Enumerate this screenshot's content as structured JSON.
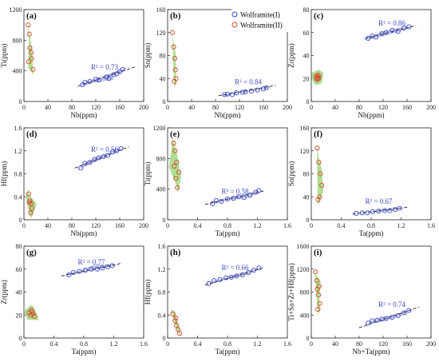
{
  "legend": {
    "series1_name": "Wolframite(I)",
    "series2_name": "Wolframite(II)",
    "series1_color": "#3f49c4",
    "series2_color": "#d14b2a",
    "series1_fill": "#b8bfe6",
    "series2_fill": "#a9d98a",
    "placement": "top-right of panel (b)"
  },
  "chart_data": [
    {
      "type": "scatter",
      "panel": "a",
      "panel_label": "(a)",
      "xlabel": "Nb(ppm)",
      "ylabel": "Ti(ppm)",
      "xlim": [
        0,
        200
      ],
      "ylim": [
        0,
        1200
      ],
      "xticks": [
        0,
        40,
        80,
        120,
        160,
        200
      ],
      "yticks": [
        0,
        400,
        800,
        1200
      ],
      "r2_label": "R² = 0.73",
      "r2_pos": [
        112,
        420
      ],
      "trend": {
        "x": [
          90,
          185
        ],
        "y": [
          200,
          450
        ]
      },
      "series": [
        {
          "name": "Wolframite(I)",
          "x": [
            98,
            102,
            110,
            120,
            125,
            138,
            142,
            150,
            155,
            160,
            165
          ],
          "y": [
            220,
            250,
            260,
            290,
            280,
            320,
            300,
            350,
            360,
            390,
            420
          ]
        },
        {
          "name": "Wolframite(II)",
          "x": [
            7,
            9,
            10,
            12,
            13,
            15,
            8
          ],
          "y": [
            1000,
            880,
            700,
            640,
            560,
            420,
            520
          ]
        }
      ]
    },
    {
      "type": "scatter",
      "panel": "b",
      "panel_label": "(b)",
      "xlabel": "Nb(ppm)",
      "ylabel": "Sn(ppm)",
      "xlim": [
        0,
        200
      ],
      "ylim": [
        0,
        160
      ],
      "xticks": [
        0,
        40,
        80,
        120,
        160,
        200
      ],
      "yticks": [
        0,
        40,
        80,
        120,
        160
      ],
      "r2_label": "R² = 0.84",
      "r2_pos": [
        112,
        30
      ],
      "trend": {
        "x": [
          85,
          180
        ],
        "y": [
          10,
          28
        ]
      },
      "series": [
        {
          "name": "Wolframite(I)",
          "x": [
            95,
            100,
            108,
            115,
            125,
            130,
            140,
            150,
            160,
            165
          ],
          "y": [
            12,
            13,
            12,
            15,
            16,
            17,
            18,
            20,
            22,
            24
          ]
        },
        {
          "name": "Wolframite(II)",
          "x": [
            8,
            10,
            12,
            13,
            14,
            11
          ],
          "y": [
            120,
            95,
            75,
            55,
            40,
            35
          ]
        }
      ]
    },
    {
      "type": "scatter",
      "panel": "c",
      "panel_label": "(c)",
      "xlabel": "Nb(ppm)",
      "ylabel": "Zr(ppm)",
      "xlim": [
        0,
        200
      ],
      "ylim": [
        0,
        80
      ],
      "xticks": [
        0,
        40,
        80,
        120,
        160,
        200
      ],
      "yticks": [
        0,
        20,
        40,
        60,
        80
      ],
      "r2_label": "R² = 0.86",
      "r2_pos": [
        112,
        66
      ],
      "trend": {
        "x": [
          90,
          175
        ],
        "y": [
          55,
          66
        ]
      },
      "series": [
        {
          "name": "Wolframite(I)",
          "x": [
            95,
            102,
            108,
            118,
            125,
            135,
            145,
            155,
            163
          ],
          "y": [
            55,
            57,
            56,
            59,
            60,
            62,
            61,
            64,
            65
          ]
        },
        {
          "name": "Wolframite(II)",
          "x": [
            8,
            9,
            10,
            11,
            12,
            13,
            10
          ],
          "y": [
            22,
            20,
            21,
            23,
            20,
            22,
            19
          ]
        }
      ]
    },
    {
      "type": "scatter",
      "panel": "d",
      "panel_label": "(d)",
      "xlabel": "Nb(ppm)",
      "ylabel": "Hf(ppm)",
      "xlim": [
        0,
        200
      ],
      "ylim": [
        0,
        1.6
      ],
      "xticks": [
        0,
        40,
        80,
        120,
        160,
        200
      ],
      "yticks": [
        0,
        0.4,
        0.8,
        1.2,
        1.6
      ],
      "r2_label": "R² = 0.56",
      "r2_pos": [
        112,
        1.18
      ],
      "trend": {
        "x": [
          85,
          175
        ],
        "y": [
          0.9,
          1.27
        ]
      },
      "series": [
        {
          "name": "Wolframite(I)",
          "x": [
            95,
            102,
            110,
            118,
            125,
            133,
            140,
            148,
            155,
            162
          ],
          "y": [
            0.9,
            0.98,
            1.0,
            1.05,
            1.08,
            1.1,
            1.12,
            1.18,
            1.2,
            1.24
          ]
        },
        {
          "name": "Wolframite(II)",
          "x": [
            8,
            10,
            12,
            13,
            11,
            9
          ],
          "y": [
            0.45,
            0.33,
            0.28,
            0.2,
            0.12,
            0.3
          ]
        }
      ]
    },
    {
      "type": "scatter",
      "panel": "e",
      "panel_label": "(e)",
      "xlabel": "Ta(ppm)",
      "ylabel": "Ti(ppm)",
      "xlim": [
        0,
        1.6
      ],
      "ylim": [
        0,
        1200
      ],
      "xticks": [
        0,
        0.4,
        0.8,
        1.2,
        1.6
      ],
      "yticks": [
        0,
        400,
        800,
        1200
      ],
      "r2_label": "R² = 0.58",
      "r2_pos": [
        0.72,
        340
      ],
      "trend": {
        "x": [
          0.5,
          1.3
        ],
        "y": [
          200,
          380
        ]
      },
      "series": [
        {
          "name": "Wolframite(I)",
          "x": [
            0.6,
            0.65,
            0.72,
            0.8,
            0.88,
            0.95,
            1.02,
            1.1,
            1.18,
            1.22
          ],
          "y": [
            210,
            250,
            240,
            270,
            280,
            300,
            290,
            320,
            360,
            380
          ]
        },
        {
          "name": "Wolframite(II)",
          "x": [
            0.08,
            0.1,
            0.12,
            0.15,
            0.11,
            0.13,
            0.09
          ],
          "y": [
            1000,
            900,
            750,
            620,
            540,
            420,
            700
          ]
        }
      ]
    },
    {
      "type": "scatter",
      "panel": "f",
      "panel_label": "(f)",
      "xlabel": "Ta(ppm)",
      "ylabel": "Sn(ppm)",
      "xlim": [
        0,
        1.6
      ],
      "ylim": [
        0,
        160
      ],
      "xticks": [
        0,
        0.4,
        0.8,
        1.2,
        1.6
      ],
      "yticks": [
        0,
        40,
        80,
        120,
        160
      ],
      "r2_label": "R² = 0.67",
      "r2_pos": [
        0.72,
        28
      ],
      "trend": {
        "x": [
          0.55,
          1.3
        ],
        "y": [
          10,
          22
        ]
      },
      "series": [
        {
          "name": "Wolframite(I)",
          "x": [
            0.6,
            0.68,
            0.75,
            0.82,
            0.9,
            0.98,
            1.05,
            1.12,
            1.18
          ],
          "y": [
            11,
            12,
            12,
            14,
            15,
            16,
            16,
            18,
            20
          ]
        },
        {
          "name": "Wolframite(II)",
          "x": [
            0.08,
            0.1,
            0.12,
            0.14,
            0.11,
            0.09
          ],
          "y": [
            125,
            100,
            80,
            60,
            40,
            35
          ]
        }
      ]
    },
    {
      "type": "scatter",
      "panel": "g",
      "panel_label": "(g)",
      "xlabel": "Ta(ppm)",
      "ylabel": "Zr(ppm)",
      "xlim": [
        0,
        1.6
      ],
      "ylim": [
        0,
        80
      ],
      "xticks": [
        0,
        0.4,
        0.8,
        1.2,
        1.6
      ],
      "yticks": [
        0,
        20,
        40,
        60,
        80
      ],
      "r2_label": "R² = 0.77",
      "r2_pos": [
        0.72,
        64
      ],
      "trend": {
        "x": [
          0.5,
          1.3
        ],
        "y": [
          54,
          65
        ]
      },
      "series": [
        {
          "name": "Wolframite(I)",
          "x": [
            0.6,
            0.66,
            0.74,
            0.82,
            0.9,
            0.98,
            1.05,
            1.12,
            1.18
          ],
          "y": [
            55,
            57,
            58,
            59,
            60,
            60,
            61,
            62,
            63
          ]
        },
        {
          "name": "Wolframite(II)",
          "x": [
            0.07,
            0.09,
            0.1,
            0.12,
            0.14,
            0.11
          ],
          "y": [
            22,
            20,
            24,
            21,
            19,
            23
          ]
        }
      ]
    },
    {
      "type": "scatter",
      "panel": "h",
      "panel_label": "(h)",
      "xlabel": "Ta(ppm)",
      "ylabel": "Hf(ppm)",
      "xlim": [
        0,
        1.6
      ],
      "ylim": [
        0,
        1.6
      ],
      "xticks": [
        0,
        0.4,
        0.8,
        1.2,
        1.6
      ],
      "yticks": [
        0,
        0.4,
        0.8,
        1.2,
        1.6
      ],
      "r2_label": "R² = 0.66",
      "r2_pos": [
        0.72,
        1.18
      ],
      "trend": {
        "x": [
          0.5,
          1.28
        ],
        "y": [
          0.92,
          1.22
        ]
      },
      "series": [
        {
          "name": "Wolframite(I)",
          "x": [
            0.55,
            0.62,
            0.7,
            0.78,
            0.85,
            0.92,
            1.0,
            1.08,
            1.15,
            1.22
          ],
          "y": [
            0.95,
            1.0,
            1.02,
            1.05,
            1.06,
            1.08,
            1.1,
            1.14,
            1.18,
            1.22
          ]
        },
        {
          "name": "Wolframite(II)",
          "x": [
            0.07,
            0.1,
            0.12,
            0.14,
            0.16,
            0.11
          ],
          "y": [
            0.42,
            0.3,
            0.22,
            0.15,
            0.08,
            0.35
          ]
        }
      ]
    },
    {
      "type": "scatter",
      "panel": "i",
      "panel_label": "(i)",
      "xlabel": "Nb+Ta(ppm)",
      "ylabel": "Ti+Sn+Zr+Hf(ppm)",
      "xlim": [
        0,
        200
      ],
      "ylim": [
        0,
        1600
      ],
      "xticks": [
        0,
        40,
        80,
        120,
        160,
        200
      ],
      "yticks": [
        0,
        400,
        800,
        1200,
        1600
      ],
      "r2_label": "R² = 0.74",
      "r2_pos": [
        112,
        540
      ],
      "trend": {
        "x": [
          80,
          180
        ],
        "y": [
          180,
          540
        ]
      },
      "series": [
        {
          "name": "Wolframite(I)",
          "x": [
            95,
            102,
            110,
            118,
            125,
            135,
            145,
            155,
            163
          ],
          "y": [
            260,
            300,
            310,
            330,
            340,
            360,
            390,
            440,
            480
          ]
        },
        {
          "name": "Wolframite(II)",
          "x": [
            7,
            9,
            10,
            12,
            14,
            11,
            13
          ],
          "y": [
            1150,
            1000,
            850,
            750,
            600,
            500,
            900
          ]
        }
      ]
    }
  ]
}
